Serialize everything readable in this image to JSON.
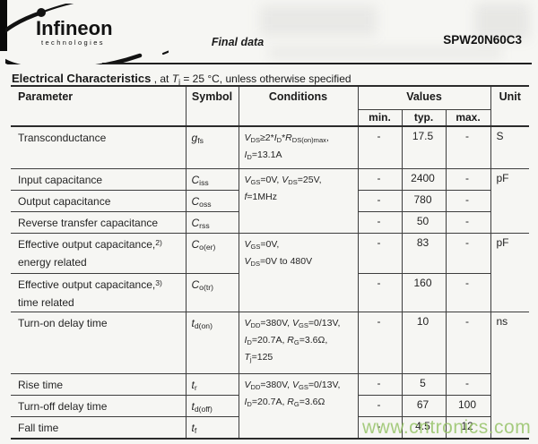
{
  "header": {
    "logo": {
      "brand": "Infineon",
      "sub": "technologies"
    },
    "doc_type": "Final data",
    "part_number": "SPW20N60C3"
  },
  "section_title": {
    "segments": [
      [
        "b",
        "Electrical Characteristics"
      ],
      [
        "t",
        " , at "
      ],
      [
        "i",
        "T"
      ],
      [
        "sub",
        "j"
      ],
      [
        "t",
        " = 25 °C, unless otherwise specified"
      ]
    ]
  },
  "table": {
    "headers": {
      "parameter": "Parameter",
      "symbol": "Symbol",
      "conditions": "Conditions",
      "values": "Values",
      "unit": "Unit",
      "min": "min.",
      "typ": "typ.",
      "max": "max."
    },
    "rows": [
      {
        "param": [
          [
            [
              "t",
              "Transconductance"
            ]
          ]
        ],
        "symbol": [
          [
            "i",
            "g"
          ],
          [
            "sub",
            "fs"
          ]
        ],
        "cond": {
          "rowspan": 1,
          "lines": [
            [
              [
                "i",
                "V"
              ],
              [
                "sub",
                "DS"
              ],
              [
                "t",
                "≥2*"
              ],
              [
                "i",
                "I"
              ],
              [
                "sub",
                "D"
              ],
              [
                "t",
                "*"
              ],
              [
                "i",
                "R"
              ],
              [
                "sub",
                "DS(on)max"
              ],
              [
                "t",
                ","
              ]
            ],
            [
              [
                "i",
                "I"
              ],
              [
                "sub",
                "D"
              ],
              [
                "t",
                "=13.1A"
              ]
            ]
          ]
        },
        "min": "-",
        "typ": "17.5",
        "max": "-",
        "unit": {
          "rowspan": 1,
          "text": "S"
        }
      },
      {
        "param": [
          [
            [
              "t",
              "Input capacitance"
            ]
          ]
        ],
        "symbol": [
          [
            "i",
            "C"
          ],
          [
            "sub",
            "iss"
          ]
        ],
        "cond": {
          "rowspan": 3,
          "lines": [
            [
              [
                "i",
                "V"
              ],
              [
                "sub",
                "GS"
              ],
              [
                "t",
                "=0V, "
              ],
              [
                "i",
                "V"
              ],
              [
                "sub",
                "DS"
              ],
              [
                "t",
                "=25V,"
              ]
            ],
            [
              [
                "i",
                "f"
              ],
              [
                "t",
                "=1MHz"
              ]
            ]
          ]
        },
        "min": "-",
        "typ": "2400",
        "max": "-",
        "unit": {
          "rowspan": 3,
          "text": "pF"
        }
      },
      {
        "param": [
          [
            [
              "t",
              "Output capacitance"
            ]
          ]
        ],
        "symbol": [
          [
            "i",
            "C"
          ],
          [
            "sub",
            "oss"
          ]
        ],
        "min": "-",
        "typ": "780",
        "max": "-"
      },
      {
        "param": [
          [
            [
              "t",
              "Reverse transfer capacitance"
            ]
          ]
        ],
        "symbol": [
          [
            "i",
            "C"
          ],
          [
            "sub",
            "rss"
          ]
        ],
        "min": "-",
        "typ": "50",
        "max": "-"
      },
      {
        "param": [
          [
            [
              "t",
              "Effective output capacitance,"
            ],
            [
              "sup",
              "2)"
            ]
          ],
          [
            [
              "t",
              "energy related"
            ]
          ]
        ],
        "symbol": [
          [
            "i",
            "C"
          ],
          [
            "sub",
            "o(er)"
          ]
        ],
        "cond": {
          "rowspan": 2,
          "lines": [
            [
              [
                "i",
                "V"
              ],
              [
                "sub",
                "GS"
              ],
              [
                "t",
                "=0V,"
              ]
            ],
            [
              [
                "i",
                "V"
              ],
              [
                "sub",
                "DS"
              ],
              [
                "t",
                "=0V to 480V"
              ]
            ]
          ]
        },
        "min": "-",
        "typ": "83",
        "max": "-",
        "unit": {
          "rowspan": 2,
          "text": "pF"
        }
      },
      {
        "param": [
          [
            [
              "t",
              "Effective output capacitance,"
            ],
            [
              "sup",
              "3)"
            ]
          ],
          [
            [
              "t",
              "time related"
            ]
          ]
        ],
        "symbol": [
          [
            "i",
            "C"
          ],
          [
            "sub",
            "o(tr)"
          ]
        ],
        "min": "-",
        "typ": "160",
        "max": "-"
      },
      {
        "param": [
          [
            [
              "t",
              "Turn-on delay time"
            ]
          ]
        ],
        "symbol": [
          [
            "i",
            "t"
          ],
          [
            "sub",
            "d(on)"
          ]
        ],
        "cond": {
          "rowspan": 1,
          "lines": [
            [
              [
                "i",
                "V"
              ],
              [
                "sub",
                "DD"
              ],
              [
                "t",
                "=380V, "
              ],
              [
                "i",
                "V"
              ],
              [
                "sub",
                "GS"
              ],
              [
                "t",
                "=0/13V,"
              ]
            ],
            [
              [
                "i",
                "I"
              ],
              [
                "sub",
                "D"
              ],
              [
                "t",
                "=20.7A, "
              ],
              [
                "i",
                "R"
              ],
              [
                "sub",
                "G"
              ],
              [
                "t",
                "=3.6Ω,"
              ]
            ],
            [
              [
                "i",
                "T"
              ],
              [
                "sub",
                "j"
              ],
              [
                "t",
                "=125"
              ]
            ]
          ]
        },
        "min": "-",
        "typ": "10",
        "max": "-",
        "unit": {
          "rowspan": 4,
          "text": "ns"
        }
      },
      {
        "param": [
          [
            [
              "t",
              "Rise time"
            ]
          ]
        ],
        "symbol": [
          [
            "i",
            "t"
          ],
          [
            "sub",
            "r"
          ]
        ],
        "cond": {
          "rowspan": 3,
          "lines": [
            [
              [
                "i",
                "V"
              ],
              [
                "sub",
                "DD"
              ],
              [
                "t",
                "=380V, "
              ],
              [
                "i",
                "V"
              ],
              [
                "sub",
                "GS"
              ],
              [
                "t",
                "=0/13V,"
              ]
            ],
            [
              [
                "i",
                "I"
              ],
              [
                "sub",
                "D"
              ],
              [
                "t",
                "=20.7A, "
              ],
              [
                "i",
                "R"
              ],
              [
                "sub",
                "G"
              ],
              [
                "t",
                "=3.6Ω"
              ]
            ]
          ]
        },
        "min": "-",
        "typ": "5",
        "max": "-"
      },
      {
        "param": [
          [
            [
              "t",
              "Turn-off delay time"
            ]
          ]
        ],
        "symbol": [
          [
            "i",
            "t"
          ],
          [
            "sub",
            "d(off)"
          ]
        ],
        "min": "-",
        "typ": "67",
        "max": "100"
      },
      {
        "param": [
          [
            [
              "t",
              "Fall time"
            ]
          ]
        ],
        "symbol": [
          [
            "i",
            "t"
          ],
          [
            "sub",
            "f"
          ]
        ],
        "min": "-",
        "typ": "4.5",
        "max": "12"
      }
    ]
  },
  "watermark": {
    "text": "www.cntronics.com",
    "color": "#98c46a"
  }
}
